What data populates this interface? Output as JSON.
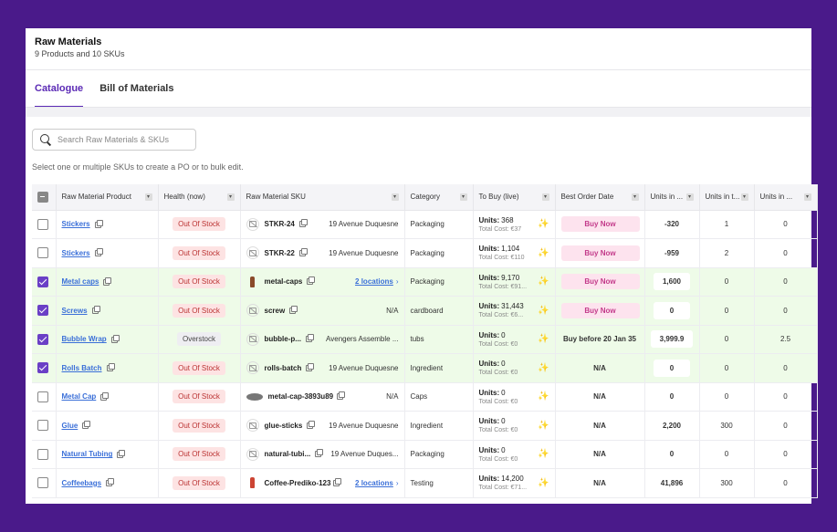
{
  "header": {
    "title": "Raw Materials",
    "subtitle": "9 Products and 10 SKUs"
  },
  "tabs": [
    {
      "label": "Catalogue"
    },
    {
      "label": "Bill of Materials"
    }
  ],
  "search": {
    "placeholder": "Search Raw Materials & SKUs"
  },
  "hint": "Select one or multiple SKUs to create a PO or to bulk edit.",
  "columns": [
    "Raw Material Product",
    "Health (now)",
    "Raw Material SKU",
    "Category",
    "To Buy (live)",
    "Best Order Date",
    "Units in ...",
    "Units in t...",
    "Units in ..."
  ],
  "units_label": "Units:",
  "rows": [
    {
      "product": "Stickers",
      "health": "Out Of Stock",
      "sku": "STKR-24",
      "location": "19 Avenue Duquesne",
      "category": "Packaging",
      "units": "368",
      "cost": "Total Cost: €37",
      "best_order": "Buy Now",
      "u1": "-320",
      "u2": "1",
      "u3": "0"
    },
    {
      "product": "Stickers",
      "health": "Out Of Stock",
      "sku": "STKR-22",
      "location": "19 Avenue Duquesne",
      "category": "Packaging",
      "units": "1,104",
      "cost": "Total Cost: €110",
      "best_order": "Buy Now",
      "u1": "-959",
      "u2": "2",
      "u3": "0"
    },
    {
      "product": "Metal caps",
      "health": "Out Of Stock",
      "sku": "metal-caps",
      "location": "2 locations",
      "category": "Packaging",
      "units": "9,170",
      "cost": "Total Cost: €91...",
      "best_order": "Buy Now",
      "u1": "1,600",
      "u2": "0",
      "u3": "0"
    },
    {
      "product": "Screws",
      "health": "Out Of Stock",
      "sku": "screw",
      "location": "N/A",
      "category": "cardboard",
      "units": "31,443",
      "cost": "Total Cost: €6...",
      "best_order": "Buy Now",
      "u1": "0",
      "u2": "0",
      "u3": "0"
    },
    {
      "product": "Bubble Wrap",
      "health": "Overstock",
      "sku": "bubble-p...",
      "location": "Avengers Assemble ...",
      "category": "tubs",
      "units": "0",
      "cost": "Total Cost: €0",
      "best_order": "Buy before 20 Jan 35",
      "u1": "3,999.9",
      "u2": "0",
      "u3": "2.5"
    },
    {
      "product": "Rolls Batch",
      "health": "Out Of Stock",
      "sku": "rolls-batch",
      "location": "19 Avenue Duquesne",
      "category": "Ingredient",
      "units": "0",
      "cost": "Total Cost: €0",
      "best_order": "N/A",
      "u1": "0",
      "u2": "0",
      "u3": "0"
    },
    {
      "product": "Metal Cap",
      "health": "Out Of Stock",
      "sku": "metal-cap-3893u89",
      "location": "N/A",
      "category": "Caps",
      "units": "0",
      "cost": "Total Cost: €0",
      "best_order": "N/A",
      "u1": "0",
      "u2": "0",
      "u3": "0"
    },
    {
      "product": "Glue",
      "health": "Out Of Stock",
      "sku": "glue-sticks",
      "location": "19 Avenue Duquesne",
      "category": "Ingredient",
      "units": "0",
      "cost": "Total Cost: €0",
      "best_order": "N/A",
      "u1": "2,200",
      "u2": "300",
      "u3": "0"
    },
    {
      "product": "Natural Tubing",
      "health": "Out Of Stock",
      "sku": "natural-tubi...",
      "location": "19 Avenue Duques...",
      "category": "Packaging",
      "units": "0",
      "cost": "Total Cost: €0",
      "best_order": "N/A",
      "u1": "0",
      "u2": "0",
      "u3": "0"
    },
    {
      "product": "Coffeebags",
      "health": "Out Of Stock",
      "sku": "Coffee-Prediko-123",
      "location": "2 locations",
      "category": "Testing",
      "units": "14,200",
      "cost": "Total Cost: €71...",
      "best_order": "N/A",
      "u1": "41,896",
      "u2": "300",
      "u3": "0"
    }
  ]
}
